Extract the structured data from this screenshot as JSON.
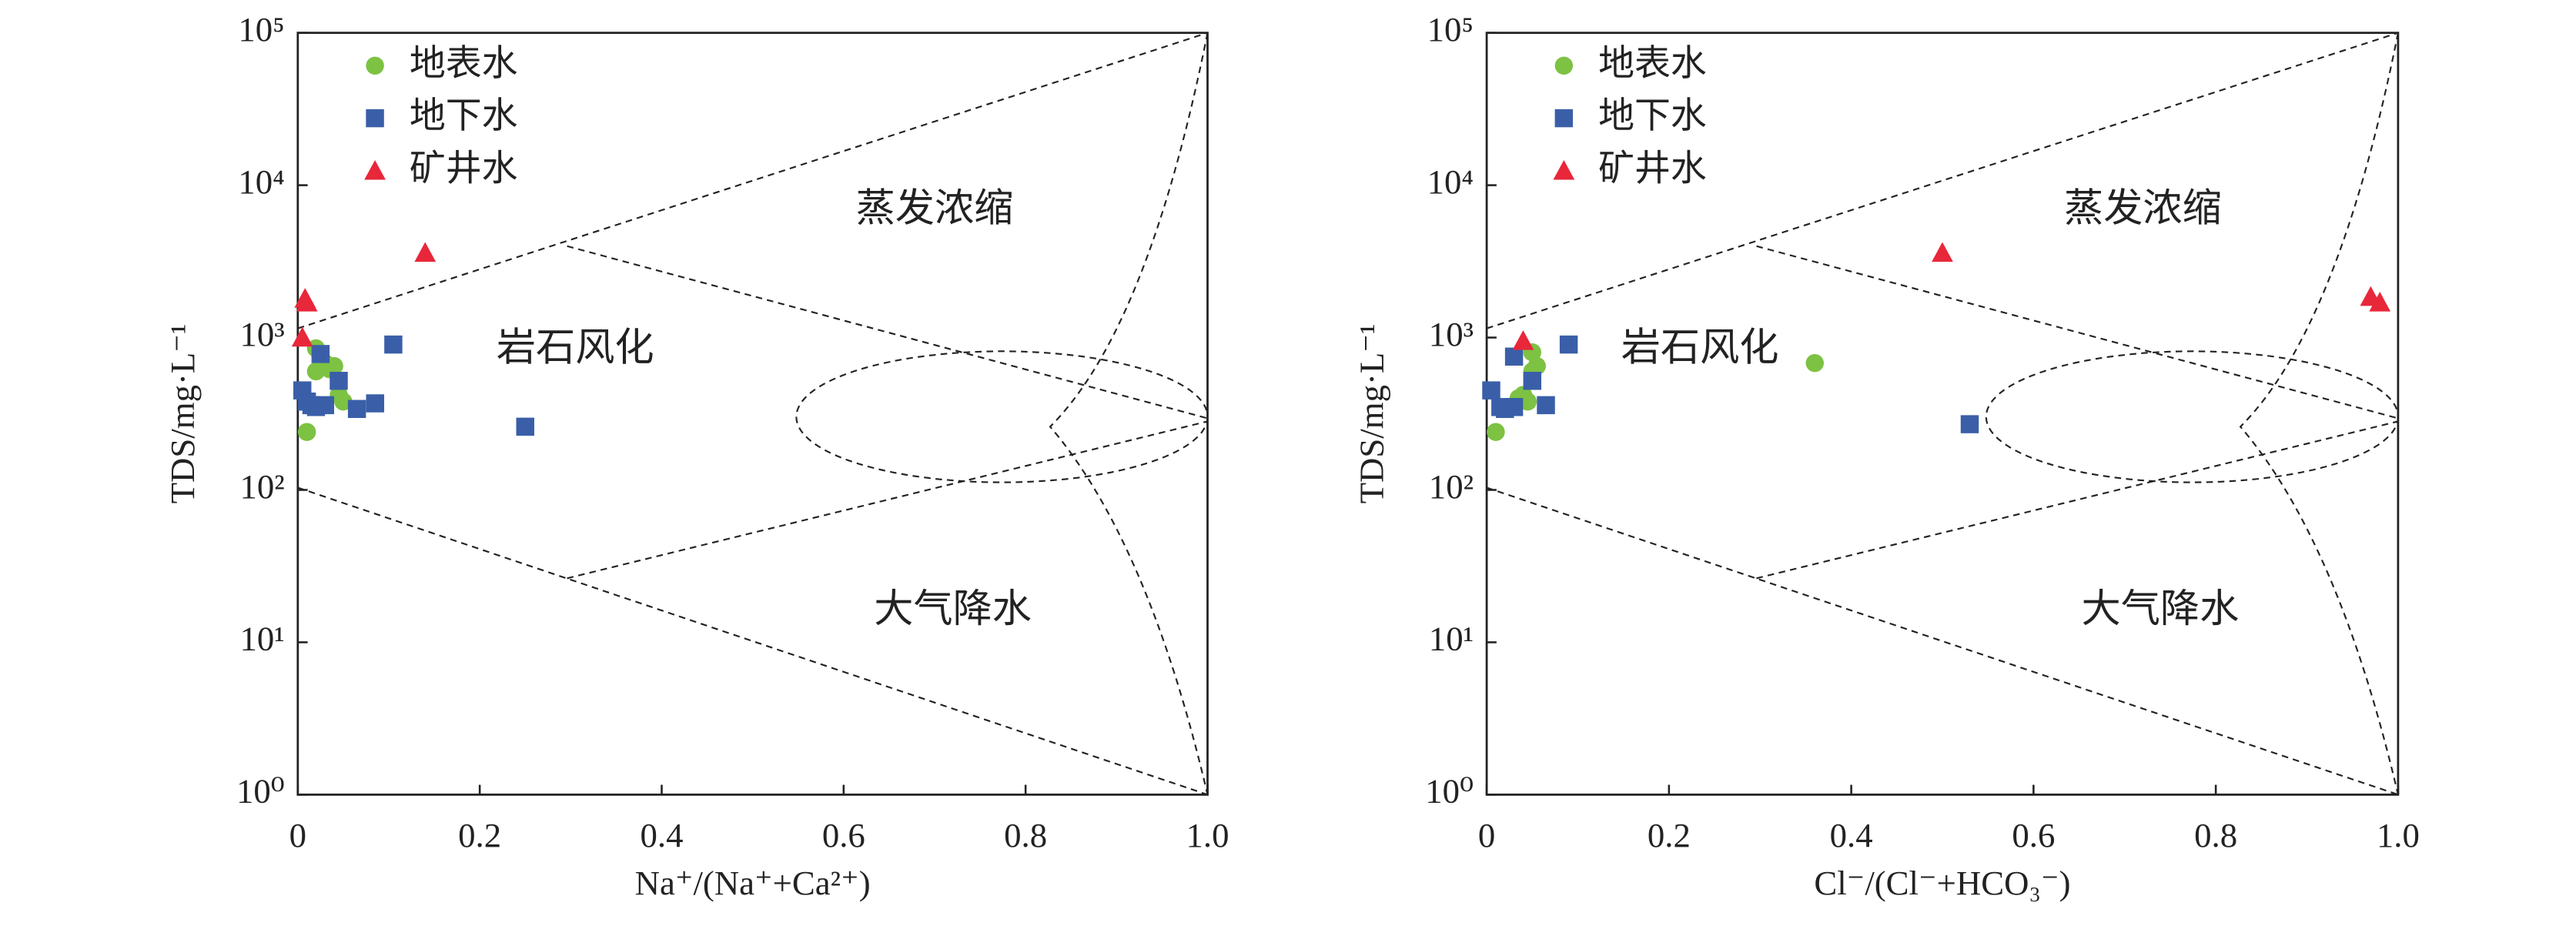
{
  "chart_data": [
    {
      "type": "scatter",
      "xlabel": "Na⁺/(Na⁺+Ca²⁺)",
      "ylabel": "TDS/mg·L⁻¹",
      "xlim": [
        0,
        1
      ],
      "xticks": [
        0,
        0.2,
        0.4,
        0.6,
        0.8,
        {
          "value": 1,
          "label": "1.0"
        }
      ],
      "ylim": [
        1,
        100000
      ],
      "yscale": "log",
      "yticks": [
        {
          "value": 1,
          "label": "10⁰"
        },
        {
          "value": 10,
          "label": "10¹"
        },
        {
          "value": 100,
          "label": "10²"
        },
        {
          "value": 1000,
          "label": "10³"
        },
        {
          "value": 10000,
          "label": "10⁴"
        },
        {
          "value": 100000,
          "label": "10⁵"
        }
      ],
      "legend": "upper left",
      "annotations": [
        "蒸发浓缩",
        "岩石风化",
        "大气降水"
      ],
      "series": [
        {
          "name": "地表水",
          "color": "#7dc242",
          "marker": "circle",
          "x": [
            0.01,
            0.02,
            0.025,
            0.03,
            0.035,
            0.04,
            0.045,
            0.05,
            0.02
          ],
          "values": [
            240,
            600,
            750,
            680,
            620,
            650,
            420,
            380,
            850
          ]
        },
        {
          "name": "地下水",
          "color": "#3a5fa8",
          "marker": "square",
          "x": [
            0.005,
            0.01,
            0.015,
            0.02,
            0.025,
            0.03,
            0.045,
            0.065,
            0.085,
            0.105,
            0.25
          ],
          "values": [
            450,
            380,
            360,
            350,
            780,
            360,
            520,
            340,
            370,
            900,
            260
          ]
        },
        {
          "name": "矿井水",
          "color": "#e8273a",
          "marker": "triangle",
          "x": [
            0.008,
            0.01,
            0.005,
            0.14
          ],
          "values": [
            1800,
            1700,
            1000,
            3600
          ]
        }
      ]
    },
    {
      "type": "scatter",
      "xlabel": "Cl⁻/(Cl⁻+HCO₃⁻)",
      "ylabel": "TDS/mg·L⁻¹",
      "xlim": [
        0,
        1
      ],
      "xticks": [
        0,
        0.2,
        0.4,
        0.6,
        0.8,
        {
          "value": 1,
          "label": "1.0"
        }
      ],
      "ylim": [
        1,
        100000
      ],
      "yscale": "log",
      "yticks": [
        {
          "value": 1,
          "label": "10⁰"
        },
        {
          "value": 10,
          "label": "10¹"
        },
        {
          "value": 100,
          "label": "10²"
        },
        {
          "value": 1000,
          "label": "10³"
        },
        {
          "value": 10000,
          "label": "10⁴"
        },
        {
          "value": 100000,
          "label": "10⁵"
        }
      ],
      "legend": "upper left",
      "annotations": [
        "蒸发浓缩",
        "岩石风化",
        "大气降水"
      ],
      "series": [
        {
          "name": "地表水",
          "color": "#7dc242",
          "marker": "circle",
          "x": [
            0.01,
            0.04,
            0.045,
            0.05,
            0.05,
            0.055,
            0.035,
            0.36
          ],
          "values": [
            240,
            420,
            380,
            600,
            800,
            650,
            400,
            680
          ]
        },
        {
          "name": "地下水",
          "color": "#3a5fa8",
          "marker": "square",
          "x": [
            0.005,
            0.015,
            0.03,
            0.03,
            0.05,
            0.065,
            0.09,
            0.53,
            0.02
          ],
          "values": [
            450,
            350,
            750,
            350,
            520,
            360,
            900,
            270,
            340
          ]
        },
        {
          "name": "矿井水",
          "color": "#e8273a",
          "marker": "triangle",
          "x": [
            0.04,
            0.5,
            0.97,
            0.98
          ],
          "values": [
            950,
            3600,
            1850,
            1700
          ]
        }
      ]
    }
  ]
}
